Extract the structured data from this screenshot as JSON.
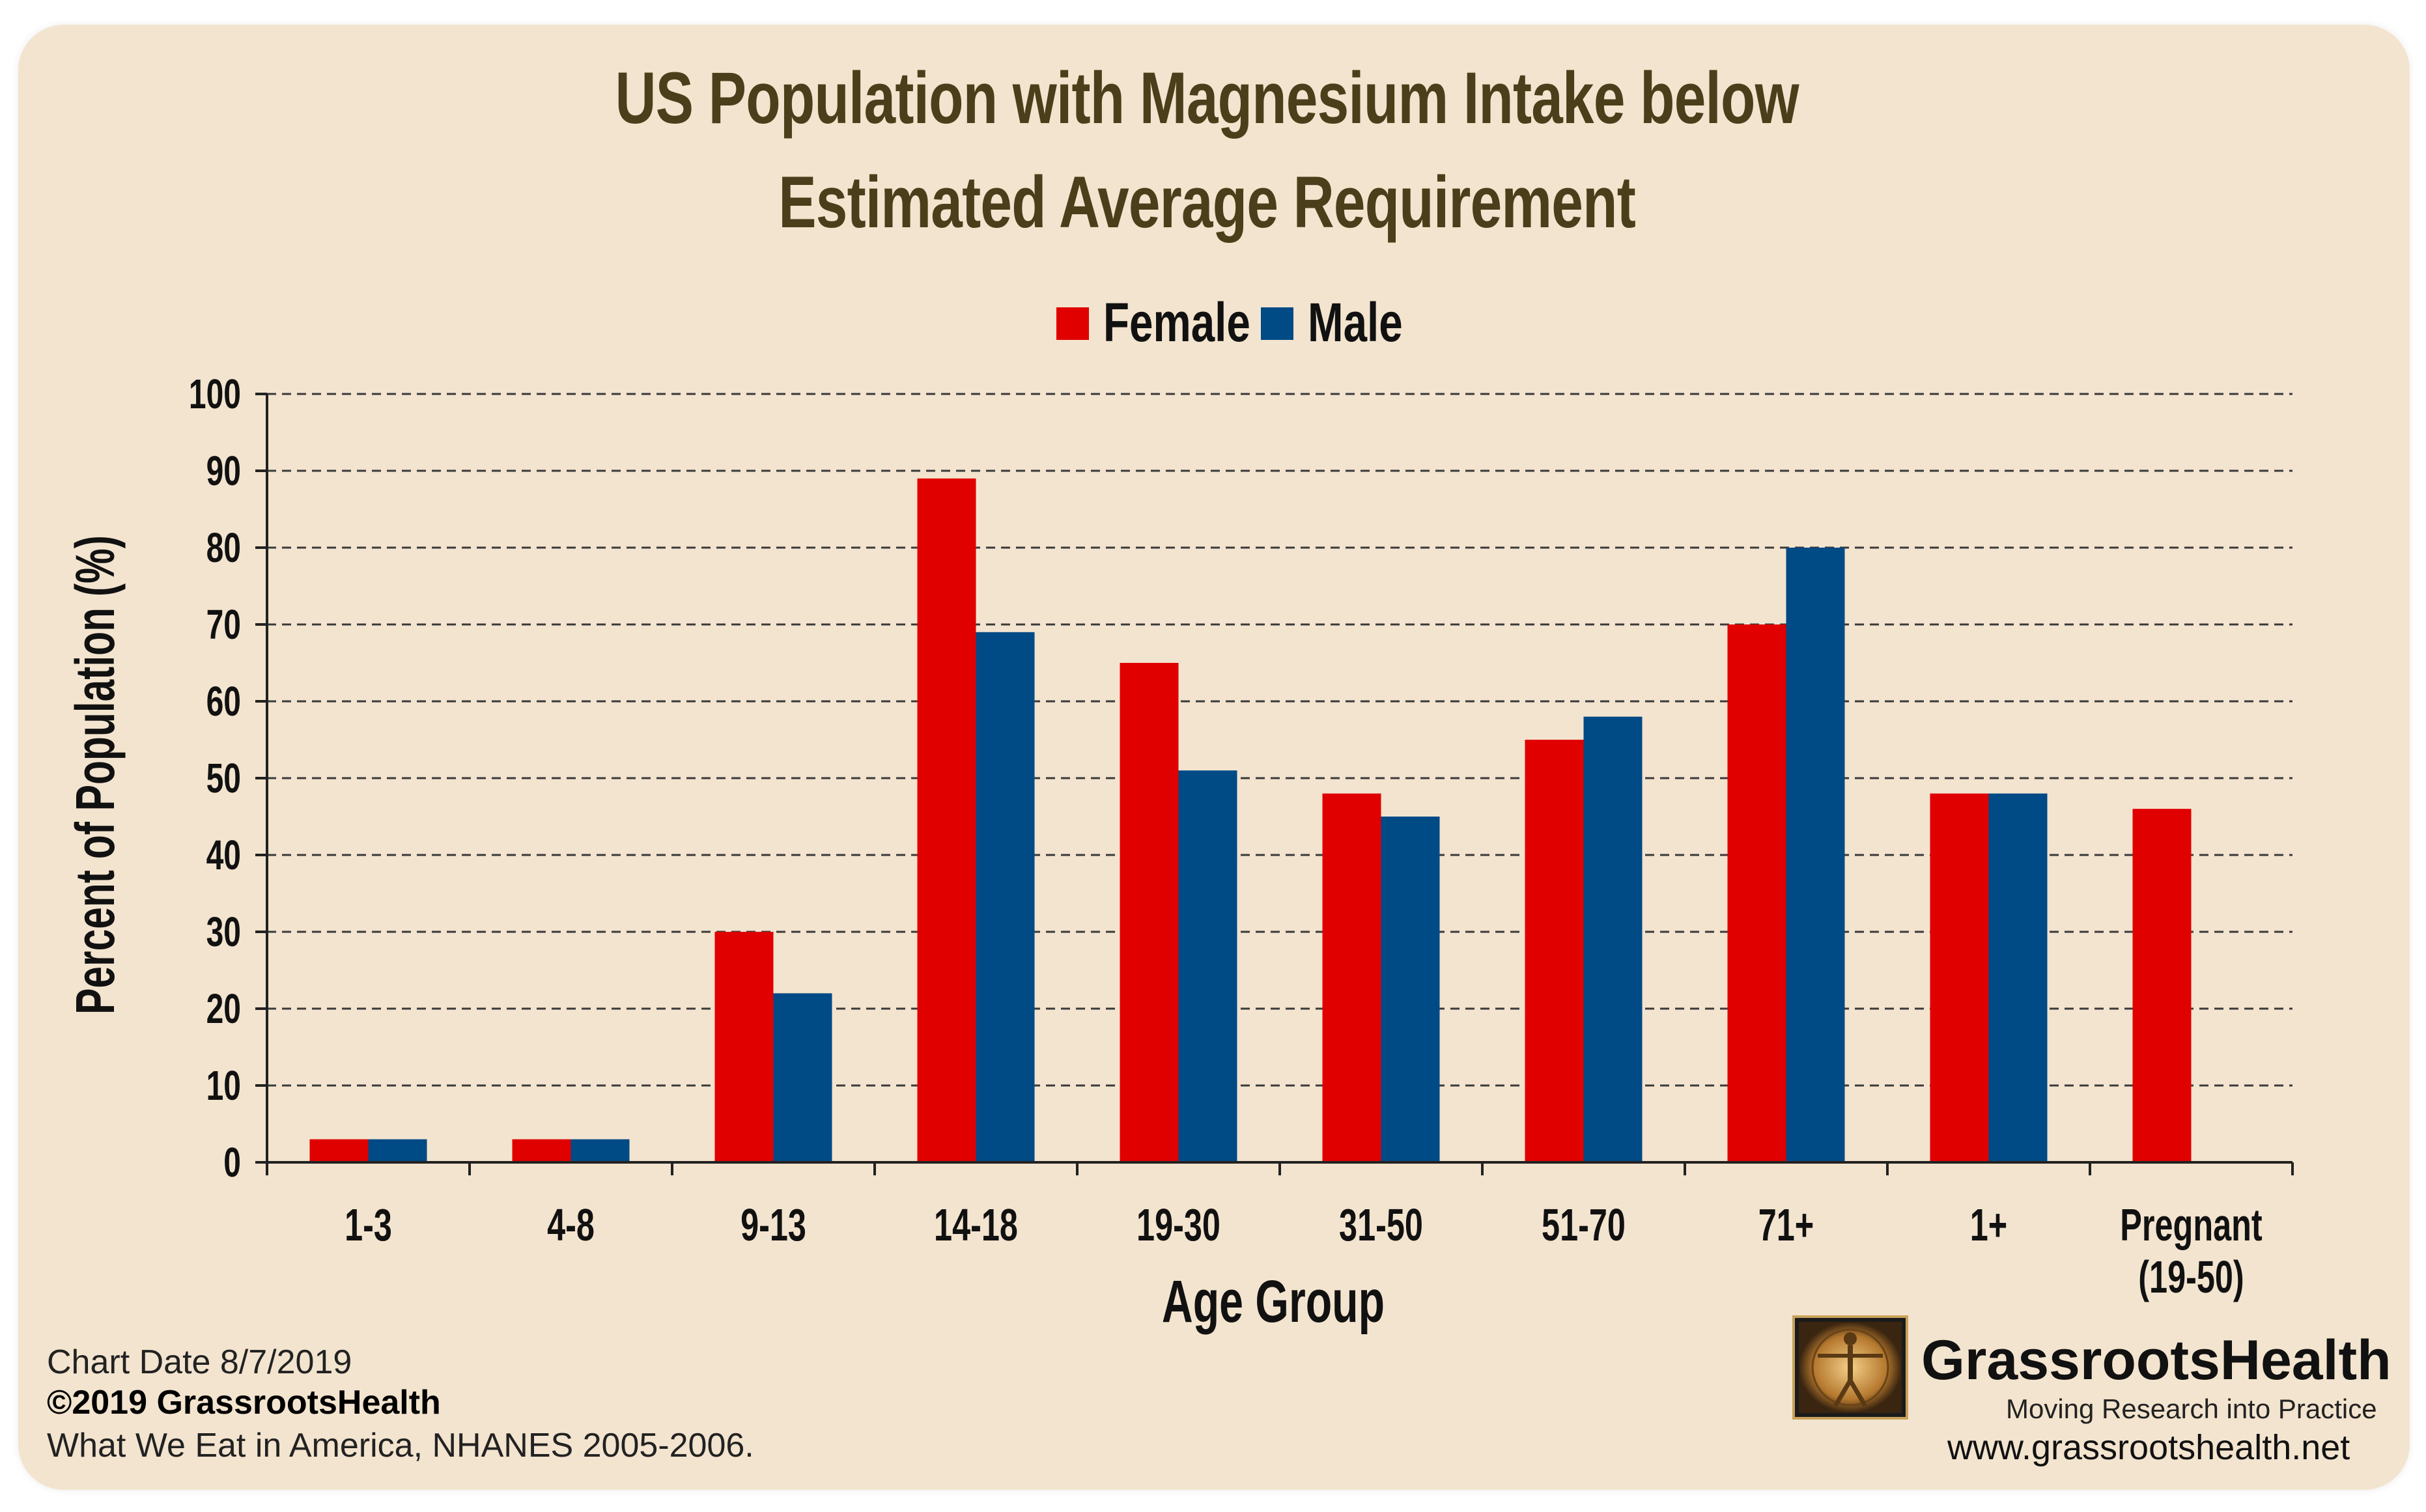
{
  "title_line1": "US Population with Magnesium Intake below",
  "title_line2": "Estimated Average Requirement",
  "legend": {
    "female": "Female",
    "male": "Male"
  },
  "colors": {
    "female": "#e00000",
    "male": "#004a86",
    "background": "#f3e4cf"
  },
  "chart_data": {
    "type": "bar",
    "title": "US Population with Magnesium Intake below Estimated Average Requirement",
    "xlabel": "Age Group",
    "ylabel": "Percent of Population (%)",
    "ylim": [
      0,
      100
    ],
    "yticks": [
      0,
      10,
      20,
      30,
      40,
      50,
      60,
      70,
      80,
      90,
      100
    ],
    "grid": "horizontal dashed",
    "legend_position": "top-center",
    "categories": [
      "1-3",
      "4-8",
      "9-13",
      "14-18",
      "19-30",
      "31-50",
      "51-70",
      "71+",
      "1+",
      "Pregnant\n(19-50)"
    ],
    "series": [
      {
        "name": "Female",
        "color": "#e00000",
        "values": [
          3,
          3,
          30,
          89,
          65,
          48,
          55,
          70,
          48,
          46
        ]
      },
      {
        "name": "Male",
        "color": "#004a86",
        "values": [
          3,
          3,
          22,
          69,
          51,
          45,
          58,
          80,
          48,
          null
        ]
      }
    ]
  },
  "footer": {
    "chart_date": "Chart Date 8/7/2019",
    "copyright": "©2019 GrassrootsHealth",
    "source": "What We Eat in America, NHANES 2005-2006."
  },
  "logo": {
    "name": "GrassrootsHealth",
    "tagline": "Moving Research into Practice",
    "website": "www.grassrootshealth.net"
  }
}
